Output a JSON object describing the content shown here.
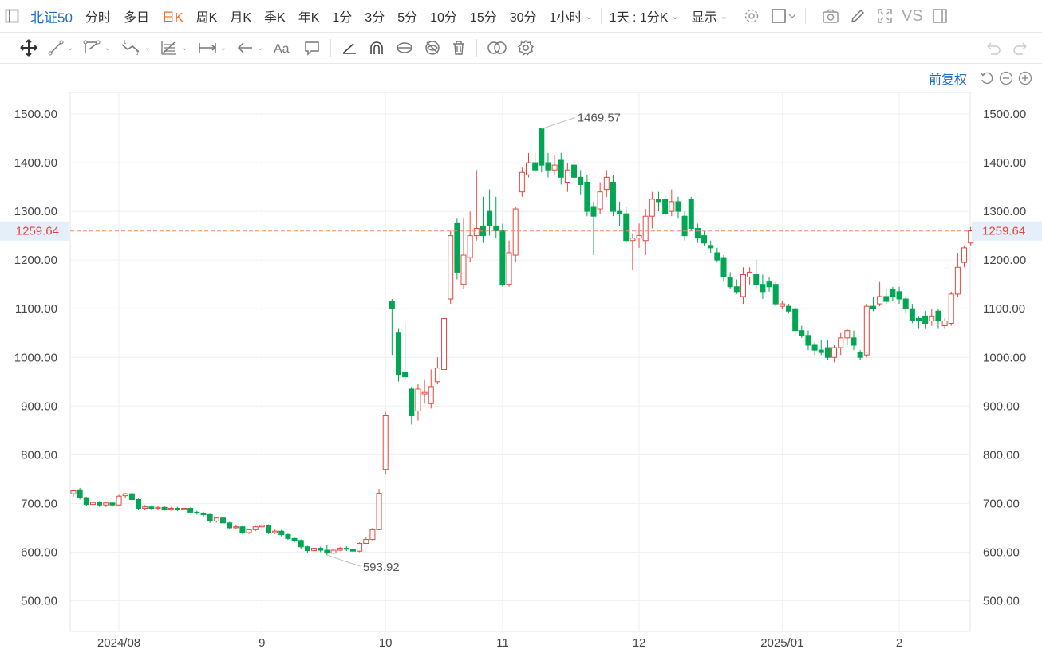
{
  "toolbar": {
    "symbol": "北证50",
    "periods": [
      {
        "label": "分时",
        "active": false
      },
      {
        "label": "多日",
        "active": false
      },
      {
        "label": "日K",
        "active": true
      },
      {
        "label": "周K",
        "active": false
      },
      {
        "label": "月K",
        "active": false
      },
      {
        "label": "季K",
        "active": false
      },
      {
        "label": "年K",
        "active": false
      },
      {
        "label": "1分",
        "active": false
      },
      {
        "label": "3分",
        "active": false
      },
      {
        "label": "5分",
        "active": false
      },
      {
        "label": "10分",
        "active": false
      },
      {
        "label": "15分",
        "active": false
      },
      {
        "label": "30分",
        "active": false
      }
    ],
    "hour_dropdown": "1小时",
    "day_minute": "1天 : 1分K",
    "display": "显示",
    "vs": "VS"
  },
  "adjust": "前复权",
  "colors": {
    "up": "#e8453c",
    "down": "#00a653",
    "accent": "#1a6ec7",
    "active": "#f26d22",
    "price_line": "#f08c5a"
  },
  "chart_data": {
    "type": "candlestick",
    "y_ticks": [
      "1500.00",
      "1400.00",
      "1300.00",
      "1200.00",
      "1100.00",
      "1000.00",
      "900.00",
      "800.00",
      "700.00",
      "600.00",
      "500.00"
    ],
    "y_values": [
      1500,
      1400,
      1300,
      1200,
      1100,
      1000,
      900,
      800,
      700,
      600,
      500
    ],
    "ylim": [
      465,
      1545
    ],
    "x_ticks": [
      {
        "label": "2024/08",
        "index": 7
      },
      {
        "label": "9",
        "index": 29
      },
      {
        "label": "10",
        "index": 48
      },
      {
        "label": "11",
        "index": 66
      },
      {
        "label": "12",
        "index": 87
      },
      {
        "label": "2025/01",
        "index": 109
      },
      {
        "label": "2",
        "index": 127
      }
    ],
    "last_price": 1259.64,
    "last_price_label": "1259.64",
    "max_label": "1469.57",
    "min_label": "593.92",
    "max_value": 1469.57,
    "min_value": 593.92,
    "max_index": 72,
    "min_index": 39,
    "candles": [
      [
        720,
        726,
        714,
        728
      ],
      [
        728,
        712,
        708,
        732
      ],
      [
        712,
        698,
        695,
        714
      ],
      [
        698,
        702,
        694,
        706
      ],
      [
        702,
        697,
        693,
        705
      ],
      [
        697,
        701,
        693,
        704
      ],
      [
        701,
        697,
        693,
        704
      ],
      [
        697,
        715,
        694,
        718
      ],
      [
        716,
        720,
        712,
        722
      ],
      [
        720,
        708,
        704,
        722
      ],
      [
        708,
        690,
        686,
        710
      ],
      [
        690,
        693,
        687,
        697
      ],
      [
        693,
        690,
        686,
        696
      ],
      [
        690,
        692,
        686,
        695
      ],
      [
        692,
        688,
        685,
        695
      ],
      [
        688,
        690,
        685,
        693
      ],
      [
        690,
        688,
        684,
        693
      ],
      [
        688,
        690,
        685,
        692
      ],
      [
        690,
        682,
        679,
        692
      ],
      [
        682,
        680,
        677,
        685
      ],
      [
        680,
        677,
        673,
        683
      ],
      [
        677,
        664,
        660,
        679
      ],
      [
        664,
        670,
        661,
        672
      ],
      [
        670,
        660,
        657,
        672
      ],
      [
        660,
        650,
        647,
        662
      ],
      [
        650,
        652,
        647,
        655
      ],
      [
        652,
        640,
        637,
        654
      ],
      [
        640,
        646,
        637,
        648
      ],
      [
        646,
        652,
        643,
        654
      ],
      [
        652,
        655,
        649,
        658
      ],
      [
        655,
        640,
        637,
        657
      ],
      [
        640,
        643,
        637,
        646
      ],
      [
        643,
        636,
        632,
        646
      ],
      [
        636,
        628,
        625,
        638
      ],
      [
        628,
        624,
        620,
        630
      ],
      [
        624,
        611,
        607,
        626
      ],
      [
        611,
        603,
        599,
        613
      ],
      [
        603,
        608,
        600,
        610
      ],
      [
        608,
        604,
        600,
        611
      ],
      [
        604,
        598,
        594,
        615
      ],
      [
        598,
        604,
        597,
        606
      ],
      [
        604,
        608,
        602,
        611
      ],
      [
        608,
        606,
        602,
        612
      ],
      [
        606,
        602,
        598,
        608
      ],
      [
        602,
        618,
        600,
        620
      ],
      [
        618,
        626,
        617,
        630
      ],
      [
        626,
        646,
        624,
        650
      ],
      [
        646,
        721,
        645,
        730
      ],
      [
        770,
        880,
        760,
        888
      ],
      [
        1115,
        1100,
        1005,
        1120
      ],
      [
        1050,
        965,
        950,
        1060
      ],
      [
        970,
        960,
        955,
        1070
      ],
      [
        935,
        880,
        862,
        940
      ],
      [
        890,
        935,
        870,
        945
      ],
      [
        925,
        928,
        905,
        955
      ],
      [
        905,
        940,
        895,
        975
      ],
      [
        950,
        978,
        945,
        1000
      ],
      [
        975,
        1080,
        968,
        1090
      ],
      [
        1120,
        1250,
        1110,
        1260
      ],
      [
        1275,
        1175,
        1160,
        1285
      ],
      [
        1150,
        1210,
        1140,
        1285
      ],
      [
        1205,
        1250,
        1195,
        1300
      ],
      [
        1250,
        1265,
        1240,
        1385
      ],
      [
        1270,
        1250,
        1235,
        1330
      ],
      [
        1300,
        1270,
        1250,
        1345
      ],
      [
        1270,
        1260,
        1245,
        1330
      ],
      [
        1260,
        1150,
        1145,
        1275
      ],
      [
        1150,
        1215,
        1145,
        1240
      ],
      [
        1210,
        1305,
        1195,
        1310
      ],
      [
        1340,
        1380,
        1330,
        1390
      ],
      [
        1375,
        1400,
        1370,
        1420
      ],
      [
        1400,
        1385,
        1380,
        1420
      ],
      [
        1470,
        1395,
        1380,
        1470
      ],
      [
        1400,
        1385,
        1370,
        1420
      ],
      [
        1385,
        1395,
        1375,
        1415
      ],
      [
        1405,
        1370,
        1355,
        1420
      ],
      [
        1360,
        1385,
        1340,
        1400
      ],
      [
        1395,
        1370,
        1345,
        1405
      ],
      [
        1370,
        1355,
        1335,
        1385
      ],
      [
        1360,
        1300,
        1290,
        1375
      ],
      [
        1310,
        1290,
        1210,
        1320
      ],
      [
        1305,
        1340,
        1295,
        1360
      ],
      [
        1345,
        1370,
        1330,
        1385
      ],
      [
        1360,
        1300,
        1290,
        1375
      ],
      [
        1300,
        1295,
        1270,
        1320
      ],
      [
        1295,
        1240,
        1235,
        1310
      ],
      [
        1240,
        1245,
        1180,
        1255
      ],
      [
        1245,
        1250,
        1225,
        1275
      ],
      [
        1240,
        1290,
        1210,
        1305
      ],
      [
        1290,
        1325,
        1265,
        1340
      ],
      [
        1325,
        1320,
        1300,
        1340
      ],
      [
        1325,
        1295,
        1290,
        1335
      ],
      [
        1300,
        1320,
        1290,
        1345
      ],
      [
        1320,
        1300,
        1285,
        1330
      ],
      [
        1290,
        1250,
        1240,
        1300
      ],
      [
        1325,
        1265,
        1260,
        1330
      ],
      [
        1265,
        1245,
        1235,
        1275
      ],
      [
        1250,
        1235,
        1230,
        1260
      ],
      [
        1230,
        1225,
        1215,
        1240
      ],
      [
        1215,
        1200,
        1195,
        1225
      ],
      [
        1205,
        1165,
        1155,
        1210
      ],
      [
        1165,
        1145,
        1140,
        1175
      ],
      [
        1145,
        1135,
        1130,
        1160
      ],
      [
        1125,
        1170,
        1110,
        1185
      ],
      [
        1165,
        1175,
        1150,
        1185
      ],
      [
        1170,
        1150,
        1140,
        1200
      ],
      [
        1150,
        1135,
        1120,
        1170
      ],
      [
        1155,
        1145,
        1135,
        1165
      ],
      [
        1150,
        1110,
        1105,
        1155
      ],
      [
        1105,
        1110,
        1100,
        1115
      ],
      [
        1105,
        1095,
        1090,
        1110
      ],
      [
        1100,
        1055,
        1045,
        1105
      ],
      [
        1055,
        1045,
        1040,
        1065
      ],
      [
        1045,
        1025,
        1015,
        1055
      ],
      [
        1025,
        1015,
        1005,
        1030
      ],
      [
        1015,
        1010,
        1005,
        1035
      ],
      [
        1020,
        1000,
        995,
        1035
      ],
      [
        1000,
        1020,
        990,
        1025
      ],
      [
        1020,
        1040,
        1005,
        1050
      ],
      [
        1040,
        1055,
        1025,
        1060
      ],
      [
        1040,
        1025,
        1015,
        1055
      ],
      [
        1010,
        1000,
        995,
        1015
      ],
      [
        1005,
        1105,
        1000,
        1110
      ],
      [
        1105,
        1100,
        1095,
        1125
      ],
      [
        1110,
        1125,
        1105,
        1155
      ],
      [
        1125,
        1115,
        1110,
        1140
      ],
      [
        1140,
        1125,
        1115,
        1145
      ],
      [
        1135,
        1120,
        1110,
        1145
      ],
      [
        1120,
        1100,
        1090,
        1125
      ],
      [
        1100,
        1075,
        1070,
        1110
      ],
      [
        1080,
        1075,
        1060,
        1085
      ],
      [
        1085,
        1070,
        1060,
        1095
      ],
      [
        1075,
        1085,
        1065,
        1100
      ],
      [
        1095,
        1075,
        1060,
        1100
      ],
      [
        1065,
        1075,
        1060,
        1080
      ],
      [
        1070,
        1130,
        1065,
        1135
      ],
      [
        1130,
        1185,
        1125,
        1215
      ],
      [
        1195,
        1225,
        1185,
        1230
      ],
      [
        1235,
        1260,
        1230,
        1268
      ]
    ]
  }
}
